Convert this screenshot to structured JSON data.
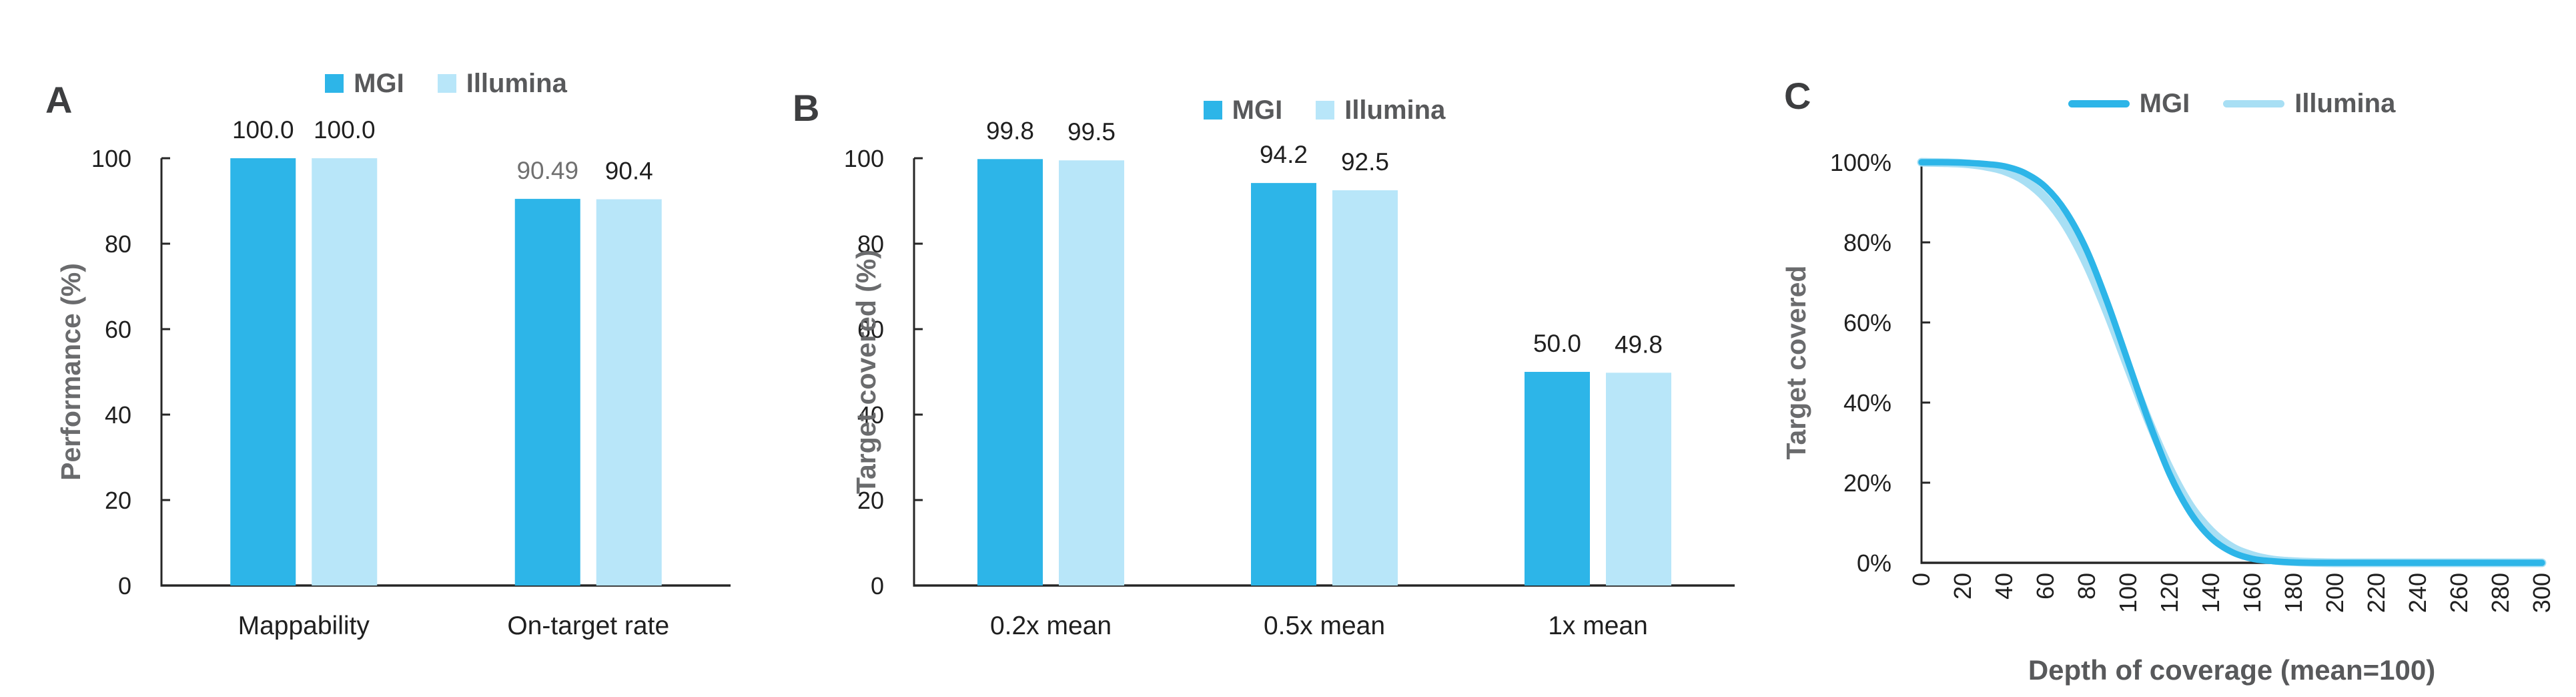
{
  "colors": {
    "mgi": "#2DB5E8",
    "illumina_bar": "#B8E6F9",
    "illumina_line": "#A8DFF4",
    "axis": "#262626",
    "text_dark": "#1F1F1F",
    "text_muted": "#707070",
    "axis_title": "#6A6B6D",
    "legend_text": "#58595B",
    "panel_letter": "#3D3E40"
  },
  "chart_data": [
    {
      "panel": "A",
      "type": "bar",
      "ylabel": "Performance (%)",
      "ylim": [
        0,
        100
      ],
      "yticks": [
        "0",
        "20",
        "40",
        "60",
        "80",
        "100"
      ],
      "grid": "off",
      "legend_position": "top-center",
      "categories": [
        "Mappability",
        "On-target rate"
      ],
      "series": [
        {
          "name": "MGI",
          "values": [
            100.0,
            90.49
          ],
          "labels": [
            "100.0",
            "90.49"
          ],
          "label_colors": [
            "#1F1F1F",
            "#707070"
          ]
        },
        {
          "name": "Illumina",
          "values": [
            100.0,
            90.4
          ],
          "labels": [
            "100.0",
            "90.4"
          ],
          "label_colors": [
            "#1F1F1F",
            "#1F1F1F"
          ]
        }
      ]
    },
    {
      "panel": "B",
      "type": "bar",
      "ylabel": "Target covered (%)",
      "ylim": [
        0,
        100
      ],
      "yticks": [
        "0",
        "20",
        "40",
        "60",
        "80",
        "100"
      ],
      "grid": "off",
      "legend_position": "top-center",
      "categories": [
        "0.2x mean",
        "0.5x mean",
        "1x mean"
      ],
      "series": [
        {
          "name": "MGI",
          "values": [
            99.8,
            94.2,
            50.0
          ],
          "labels": [
            "99.8",
            "94.2",
            "50.0"
          ],
          "label_colors": [
            "#1F1F1F",
            "#1F1F1F",
            "#1F1F1F"
          ]
        },
        {
          "name": "Illumina",
          "values": [
            99.5,
            92.5,
            49.8
          ],
          "labels": [
            "99.5",
            "92.5",
            "49.8"
          ],
          "label_colors": [
            "#1F1F1F",
            "#1F1F1F",
            "#1F1F1F"
          ]
        }
      ]
    },
    {
      "panel": "C",
      "type": "line",
      "ylabel": "Target covered",
      "xlabel": "Depth of coverage (mean=100)",
      "ylim": [
        0,
        1
      ],
      "xlim": [
        0,
        300
      ],
      "yticks": [
        "0%",
        "20%",
        "40%",
        "60%",
        "80%",
        "100%"
      ],
      "xticks": [
        "0",
        "20",
        "40",
        "60",
        "80",
        "100",
        "120",
        "140",
        "160",
        "180",
        "200",
        "220",
        "240",
        "260",
        "280",
        "300"
      ],
      "grid": "off",
      "legend_position": "top-center",
      "x": [
        0,
        10,
        20,
        30,
        40,
        50,
        60,
        70,
        80,
        90,
        100,
        110,
        120,
        130,
        140,
        150,
        160,
        170,
        180,
        190,
        200,
        210,
        220,
        230,
        240,
        250,
        260,
        270,
        280,
        290,
        300
      ],
      "series": [
        {
          "name": "MGI",
          "values": [
            1.0,
            1.0,
            0.999,
            0.996,
            0.99,
            0.973,
            0.938,
            0.875,
            0.779,
            0.648,
            0.5,
            0.352,
            0.221,
            0.125,
            0.062,
            0.027,
            0.01,
            0.004,
            0.001,
            0.0,
            0.0,
            0.0,
            0.0,
            0.0,
            0.0,
            0.0,
            0.0,
            0.0,
            0.0,
            0.0,
            0.0
          ]
        },
        {
          "name": "Illumina",
          "values": [
            1.0,
            0.999,
            0.997,
            0.991,
            0.979,
            0.954,
            0.91,
            0.841,
            0.744,
            0.622,
            0.486,
            0.352,
            0.235,
            0.142,
            0.079,
            0.039,
            0.018,
            0.007,
            0.003,
            0.001,
            0.0,
            0.0,
            0.0,
            0.0,
            0.0,
            0.0,
            0.0,
            0.0,
            0.0,
            0.0,
            0.0
          ]
        }
      ]
    }
  ]
}
